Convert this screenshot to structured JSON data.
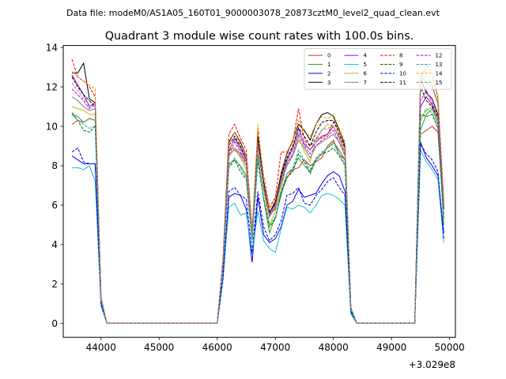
{
  "suptitle": "Data file: modeM0/AS1A05_160T01_9000003078_20873cztM0_level2_quad_clean.evt",
  "chart_data": {
    "type": "line",
    "title": "Quadrant 3 module wise count rates with 100.0s bins.",
    "xlabel": "",
    "ylabel": "",
    "x_offset_label": "+3.029e8",
    "xlim": [
      43350,
      50100
    ],
    "ylim": [
      -0.7,
      14.1
    ],
    "x_ticks": [
      44000,
      45000,
      46000,
      47000,
      48000,
      49000,
      50000
    ],
    "x_tick_labels": [
      "44000",
      "45000",
      "46000",
      "47000",
      "48000",
      "49000",
      "50000"
    ],
    "y_ticks": [
      0,
      2,
      4,
      6,
      8,
      10,
      12,
      14
    ],
    "y_tick_labels": [
      "0",
      "2",
      "4",
      "6",
      "8",
      "10",
      "12",
      "14"
    ],
    "grid": false,
    "legend_position": "top-right",
    "legend_columns": 4,
    "segments": [
      {
        "x_start": 43500,
        "step": 100,
        "flat_after": [
          44100,
          46000
        ]
      },
      {
        "x_start": 46000,
        "step": 100,
        "flat_after": [
          48300,
          49400
        ]
      },
      {
        "x_start": 49400,
        "step": 100
      }
    ],
    "series": [
      {
        "name": "0",
        "color": "#d62728",
        "dash": "solid",
        "seg1": [
          10.1,
          10.3,
          10.2,
          10.4,
          10.3,
          1.2,
          0.02
        ],
        "seg2": [
          0.02,
          3.0,
          8.8,
          8.9,
          8.6,
          8.2,
          4.3,
          9.0,
          7.0,
          5.6,
          5.8,
          6.6,
          7.4,
          7.8,
          7.9,
          8.3,
          8.0,
          8.2,
          8.4,
          9.0,
          9.3,
          8.6,
          8.3,
          0.7,
          0.02
        ],
        "seg3": [
          0.02,
          9.6,
          9.8,
          10.0,
          9.7,
          5.3
        ]
      },
      {
        "name": "1",
        "color": "#2ca02c",
        "dash": "solid",
        "seg1": [
          10.6,
          10.5,
          10.2,
          10.4,
          10.3,
          1.2,
          0.02
        ],
        "seg2": [
          0.02,
          3.0,
          8.1,
          8.3,
          8.0,
          7.5,
          4.4,
          8.6,
          6.3,
          4.6,
          5.4,
          6.5,
          7.6,
          7.8,
          8.4,
          8.0,
          7.7,
          8.3,
          8.6,
          8.9,
          9.2,
          8.8,
          8.3,
          0.7,
          0.02
        ],
        "seg3": [
          0.02,
          9.8,
          10.6,
          10.9,
          10.1,
          5.0
        ]
      },
      {
        "name": "2",
        "color": "#0000ff",
        "dash": "solid",
        "seg1": [
          8.5,
          8.3,
          8.1,
          8.1,
          8.1,
          1.0,
          0.02
        ],
        "seg2": [
          0.02,
          2.3,
          6.4,
          6.6,
          6.5,
          5.8,
          3.1,
          6.4,
          4.5,
          4.1,
          4.3,
          4.9,
          6.0,
          6.2,
          6.8,
          6.4,
          6.5,
          6.6,
          7.1,
          7.5,
          7.7,
          7.5,
          6.7,
          0.6,
          0.02
        ],
        "seg3": [
          0.02,
          9.2,
          8.4,
          8.0,
          7.5,
          4.6
        ]
      },
      {
        "name": "3",
        "color": "#000000",
        "dash": "solid",
        "seg1": [
          12.7,
          12.7,
          13.2,
          11.4,
          11.2,
          1.3,
          0.02
        ],
        "seg2": [
          0.02,
          3.2,
          9.2,
          9.7,
          9.2,
          8.5,
          4.6,
          9.5,
          7.2,
          5.6,
          6.2,
          7.6,
          8.6,
          9.3,
          10.1,
          9.8,
          9.3,
          10.1,
          10.6,
          10.7,
          10.5,
          9.8,
          9.0,
          0.8,
          0.02
        ],
        "seg3": [
          0.02,
          12.4,
          11.7,
          11.4,
          10.6,
          6.0
        ]
      },
      {
        "name": "4",
        "color": "#9400d3",
        "dash": "solid",
        "seg1": [
          12.6,
          12.1,
          11.6,
          11.0,
          11.2,
          1.3,
          0.02
        ],
        "seg2": [
          0.02,
          3.2,
          8.7,
          9.4,
          8.9,
          8.3,
          4.5,
          9.3,
          7.0,
          5.7,
          6.0,
          7.4,
          8.3,
          8.9,
          9.9,
          9.1,
          8.8,
          9.2,
          9.5,
          9.6,
          10.0,
          9.4,
          8.7,
          0.8,
          0.02
        ],
        "seg3": [
          0.02,
          11.0,
          11.5,
          11.1,
          10.3,
          5.8
        ]
      },
      {
        "name": "5",
        "color": "#17becf",
        "dash": "solid",
        "seg1": [
          7.9,
          7.9,
          7.8,
          8.0,
          7.2,
          0.9,
          0.02
        ],
        "seg2": [
          0.02,
          2.2,
          5.9,
          6.1,
          5.5,
          5.6,
          3.5,
          5.7,
          4.2,
          3.8,
          3.6,
          4.8,
          5.9,
          5.8,
          6.0,
          5.9,
          5.6,
          6.0,
          6.5,
          6.6,
          6.5,
          6.3,
          6.0,
          0.5,
          0.02
        ],
        "seg3": [
          0.02,
          8.8,
          8.2,
          7.8,
          7.3,
          4.1
        ]
      },
      {
        "name": "6",
        "color": "#bcbd22",
        "dash": "solid",
        "seg1": [
          11.0,
          10.9,
          10.8,
          10.6,
          10.6,
          1.2,
          0.02
        ],
        "seg2": [
          0.02,
          3.1,
          8.4,
          8.9,
          8.4,
          7.8,
          4.4,
          9.0,
          6.8,
          5.0,
          5.7,
          6.8,
          8.2,
          8.5,
          9.5,
          8.7,
          8.2,
          9.3,
          9.8,
          10.1,
          10.0,
          9.5,
          8.7,
          0.8,
          0.02
        ],
        "seg3": [
          0.02,
          10.3,
          10.8,
          11.0,
          10.3,
          5.5
        ]
      },
      {
        "name": "7",
        "color": "#7f7f7f",
        "dash": "solid",
        "seg1": [
          11.5,
          11.3,
          11.0,
          10.8,
          10.9,
          1.2,
          0.02
        ],
        "seg2": [
          0.02,
          3.0,
          8.6,
          8.8,
          8.5,
          8.0,
          4.5,
          9.1,
          6.9,
          5.4,
          5.9,
          7.1,
          8.0,
          8.5,
          9.3,
          8.9,
          8.4,
          9.0,
          9.2,
          9.4,
          9.6,
          9.2,
          8.5,
          0.8,
          0.02
        ],
        "seg3": [
          0.02,
          12.6,
          12.2,
          12.0,
          11.1,
          6.2
        ]
      },
      {
        "name": "8",
        "color": "#ff0000",
        "dash": "dashed",
        "seg1": [
          13.4,
          12.5,
          12.3,
          12.0,
          11.5,
          1.3,
          0.02
        ],
        "seg2": [
          0.02,
          3.3,
          9.6,
          10.1,
          9.4,
          8.8,
          4.7,
          9.8,
          7.5,
          5.9,
          6.4,
          8.7,
          8.7,
          9.2,
          10.9,
          9.3,
          9.0,
          9.4,
          9.4,
          9.6,
          10.2,
          9.8,
          9.1,
          0.8,
          0.02
        ],
        "seg3": [
          0.02,
          12.3,
          13.1,
          12.7,
          11.4,
          6.2
        ]
      },
      {
        "name": "9",
        "color": "#006400",
        "dash": "dashed",
        "seg1": [
          10.7,
          10.3,
          9.8,
          9.7,
          10.0,
          1.2,
          0.02
        ],
        "seg2": [
          0.02,
          2.9,
          7.9,
          8.3,
          7.7,
          7.3,
          4.2,
          8.2,
          6.3,
          4.9,
          5.3,
          6.6,
          7.4,
          7.7,
          8.6,
          8.2,
          7.6,
          8.3,
          8.6,
          8.7,
          8.9,
          8.5,
          8.0,
          0.7,
          0.02
        ],
        "seg3": [
          0.02,
          10.6,
          10.5,
          10.6,
          9.9,
          5.3
        ]
      },
      {
        "name": "10",
        "color": "#0000cd",
        "dash": "dashed",
        "seg1": [
          8.7,
          8.9,
          8.2,
          8.1,
          8.1,
          1.0,
          0.02
        ],
        "seg2": [
          0.02,
          2.3,
          6.7,
          6.9,
          6.5,
          6.3,
          3.6,
          6.7,
          4.9,
          4.2,
          4.5,
          5.2,
          6.5,
          6.6,
          6.9,
          6.1,
          6.0,
          6.5,
          6.8,
          7.2,
          7.4,
          6.9,
          6.5,
          0.6,
          0.02
        ],
        "seg3": [
          0.02,
          9.1,
          8.6,
          8.3,
          7.7,
          4.3
        ]
      },
      {
        "name": "11",
        "color": "#000000",
        "dash": "dashed",
        "seg1": [
          12.5,
          12.0,
          11.6,
          11.3,
          11.0,
          1.3,
          0.02
        ],
        "seg2": [
          0.02,
          3.2,
          9.0,
          9.5,
          9.0,
          8.4,
          4.6,
          9.3,
          7.1,
          5.6,
          6.1,
          7.5,
          8.4,
          9.0,
          9.9,
          9.5,
          9.0,
          9.7,
          10.2,
          10.3,
          10.3,
          9.6,
          8.9,
          0.8,
          0.02
        ],
        "seg3": [
          0.02,
          12.0,
          11.3,
          11.0,
          10.4,
          5.8
        ]
      },
      {
        "name": "12",
        "color": "#cc00cc",
        "dash": "dashed",
        "seg1": [
          11.9,
          11.6,
          11.3,
          10.9,
          11.1,
          1.2,
          0.02
        ],
        "seg2": [
          0.02,
          3.1,
          8.5,
          9.2,
          8.7,
          8.1,
          4.4,
          9.1,
          6.9,
          5.5,
          5.9,
          7.2,
          8.1,
          8.6,
          9.6,
          9.0,
          8.6,
          9.0,
          9.3,
          9.5,
          9.8,
          9.2,
          8.6,
          0.8,
          0.02
        ],
        "seg3": [
          0.02,
          11.3,
          11.8,
          11.2,
          10.5,
          5.9
        ]
      },
      {
        "name": "13",
        "color": "#20b2aa",
        "dash": "dashed",
        "seg1": [
          10.6,
          10.3,
          10.1,
          9.9,
          10.0,
          1.2,
          0.02
        ],
        "seg2": [
          0.02,
          2.9,
          8.0,
          8.4,
          7.9,
          7.4,
          4.2,
          8.4,
          6.4,
          5.0,
          5.4,
          6.7,
          7.6,
          7.9,
          8.8,
          8.3,
          7.8,
          8.4,
          8.7,
          8.9,
          9.1,
          8.6,
          8.1,
          0.7,
          0.02
        ],
        "seg3": [
          0.02,
          10.4,
          10.9,
          10.7,
          9.9,
          5.3
        ]
      },
      {
        "name": "14",
        "color": "#e6a800",
        "dash": "dashed",
        "seg1": [
          12.8,
          12.5,
          12.3,
          12.1,
          11.9,
          1.3,
          0.02
        ],
        "seg2": [
          0.02,
          3.3,
          9.1,
          9.7,
          9.1,
          8.5,
          4.6,
          10.1,
          7.4,
          5.8,
          6.3,
          7.7,
          8.7,
          9.3,
          10.3,
          9.7,
          9.5,
          10.1,
          10.5,
          10.4,
          10.6,
          9.9,
          9.2,
          0.8,
          0.02
        ],
        "seg3": [
          0.02,
          12.6,
          12.9,
          12.4,
          11.6,
          6.2
        ]
      },
      {
        "name": "15",
        "color": "#8c8c8c",
        "dash": "dashed",
        "seg1": [
          12.2,
          11.8,
          11.4,
          11.1,
          11.0,
          1.3,
          0.02
        ],
        "seg2": [
          0.02,
          3.1,
          8.8,
          9.3,
          8.8,
          8.2,
          4.5,
          9.2,
          7.0,
          5.5,
          6.0,
          7.3,
          8.2,
          8.8,
          9.7,
          9.2,
          8.8,
          9.4,
          9.8,
          9.9,
          10.0,
          9.4,
          8.8,
          0.8,
          0.02
        ],
        "seg3": [
          0.02,
          12.2,
          12.6,
          12.1,
          11.2,
          6.0
        ]
      }
    ]
  }
}
